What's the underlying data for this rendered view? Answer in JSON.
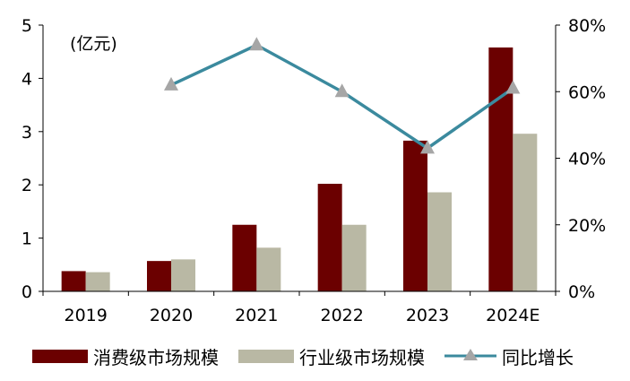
{
  "chart_data": {
    "type": "bar",
    "unit_label": "(亿元)",
    "categories": [
      "2019",
      "2020",
      "2021",
      "2022",
      "2023",
      "2024E"
    ],
    "series": [
      {
        "name": "消费级市场规模",
        "axis": "left",
        "color": "#6b0000",
        "values": [
          0.38,
          0.57,
          1.25,
          2.02,
          2.83,
          4.58
        ]
      },
      {
        "name": "行业级市场规模",
        "axis": "left",
        "color": "#b9b8a4",
        "values": [
          0.36,
          0.6,
          0.82,
          1.25,
          1.86,
          2.96
        ]
      },
      {
        "name": "同比增长",
        "axis": "right",
        "type": "line",
        "marker": "triangle",
        "color": "#3b8a9e",
        "values": [
          null,
          62,
          74,
          60,
          43,
          61
        ]
      }
    ],
    "left_axis": {
      "min": 0,
      "max": 5,
      "ticks": [
        "0",
        "1",
        "2",
        "3",
        "4",
        "5"
      ]
    },
    "right_axis": {
      "min": 0,
      "max": 80,
      "ticks": [
        "0%",
        "20%",
        "40%",
        "60%",
        "80%"
      ]
    },
    "grid": false,
    "legend_position": "bottom"
  }
}
